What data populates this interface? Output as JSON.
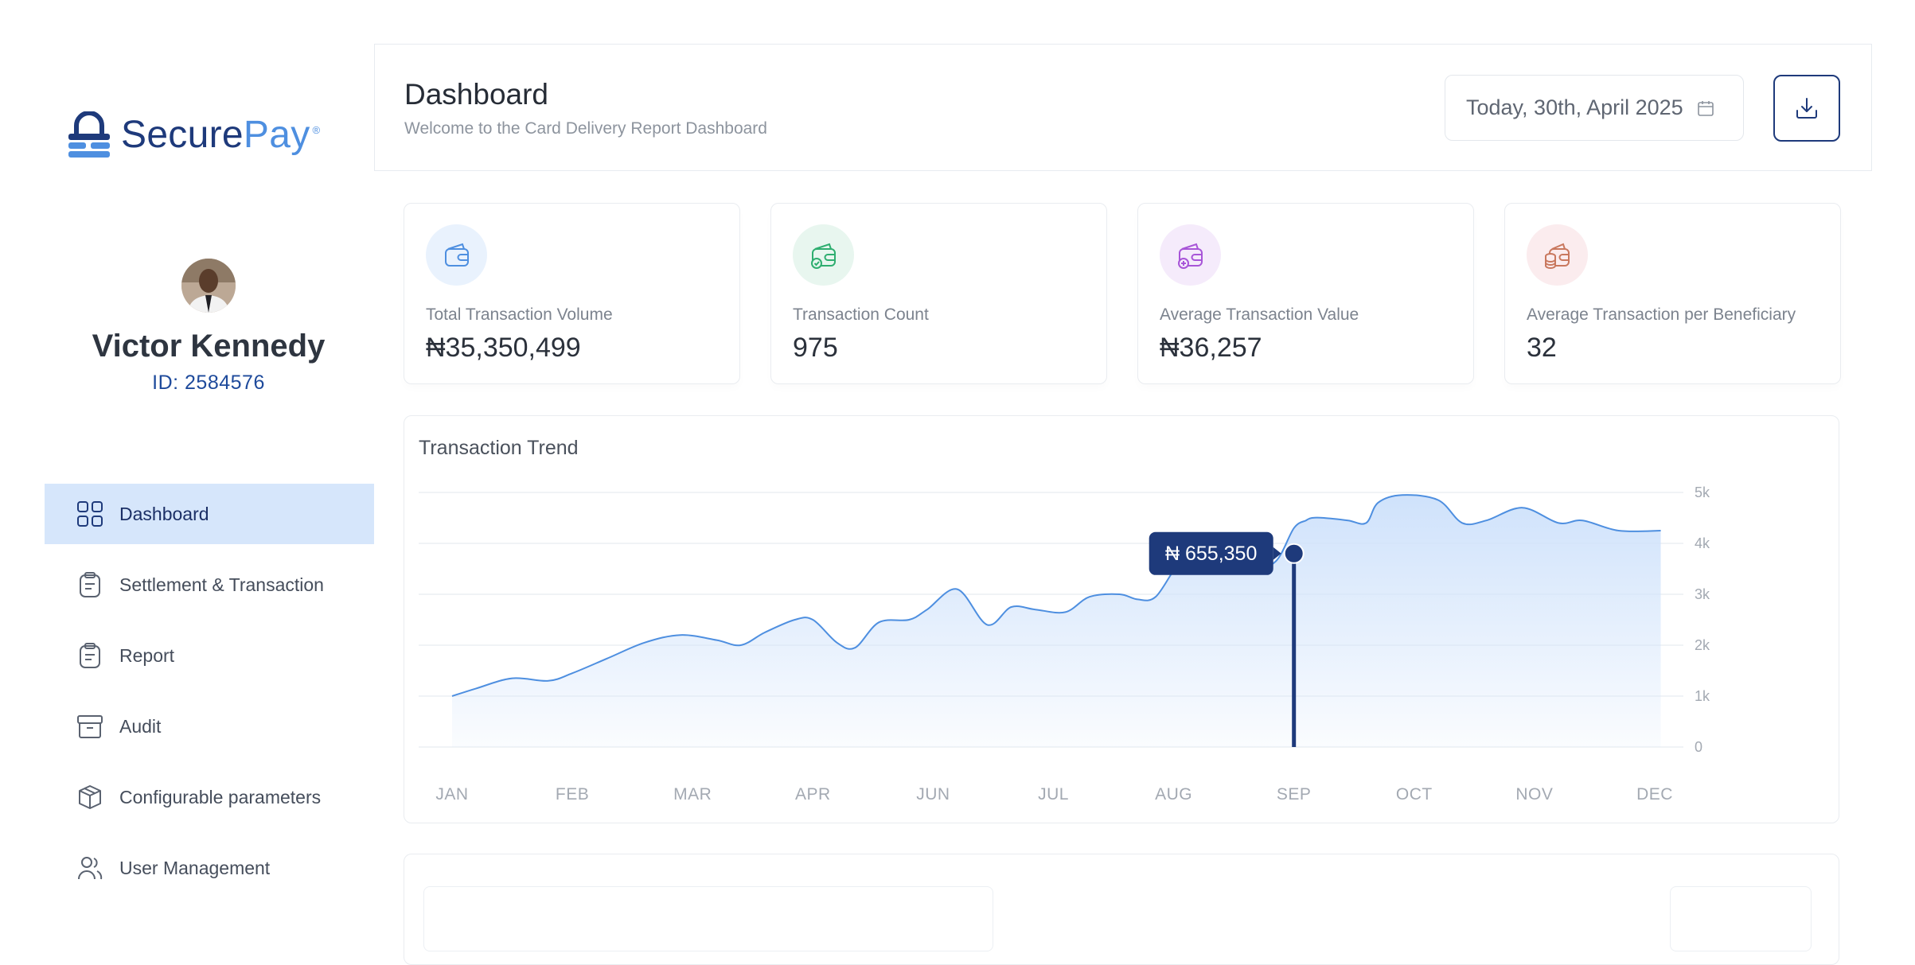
{
  "brand": {
    "name_part1": "Secure",
    "name_part2": "Pay",
    "reg_mark": "®"
  },
  "user": {
    "name": "Victor Kennedy",
    "id_text": "ID: 2584576"
  },
  "sidebar": {
    "items": [
      {
        "label": "Dashboard",
        "icon": "grid-icon",
        "active": true
      },
      {
        "label": "Settlement & Transaction",
        "icon": "clipboard-icon"
      },
      {
        "label": "Report",
        "icon": "clipboard-icon"
      },
      {
        "label": "Audit",
        "icon": "archive-box-icon"
      },
      {
        "label": "Configurable parameters",
        "icon": "cube-icon"
      },
      {
        "label": "User Management",
        "icon": "users-icon"
      }
    ]
  },
  "header": {
    "title": "Dashboard",
    "subtitle": "Welcome to the Card Delivery Report Dashboard",
    "date": "Today, 30th, April 2025",
    "date_icon": "calendar-icon",
    "download_icon": "download-icon"
  },
  "stats": [
    {
      "label": "Total Transaction Volume",
      "value": "₦35,350,499",
      "icon": "wallet-icon",
      "color": "#4e8fe0",
      "bg": "#e9f2fd"
    },
    {
      "label": "Transaction Count",
      "value": "975",
      "icon": "wallet-check-icon",
      "color": "#2fae70",
      "bg": "#e8f6ef"
    },
    {
      "label": "Average Transaction Value",
      "value": "₦36,257",
      "icon": "wallet-add-icon",
      "color": "#a855d8",
      "bg": "#f5ebfb"
    },
    {
      "label": "Average Transaction per Beneficiary",
      "value": "32",
      "icon": "wallet-coins-icon",
      "color": "#c9785e",
      "bg": "#fbecee"
    }
  ],
  "chart_data": {
    "type": "area",
    "title": "Transaction Trend",
    "categories": [
      "JAN",
      "FEB",
      "MAR",
      "APR",
      "JUN",
      "JUL",
      "AUG",
      "SEP",
      "OCT",
      "NOV",
      "DEC"
    ],
    "y_ticks": [
      "0",
      "1k",
      "2k",
      "3k",
      "4k",
      "5k"
    ],
    "ylim": [
      0,
      5000
    ],
    "grid": true,
    "line_color": "#4e8fe0",
    "series": [
      {
        "x": [
          0,
          0.2,
          0.5,
          0.8,
          1.0,
          1.3,
          1.6,
          1.9,
          2.2,
          2.4,
          2.6,
          2.85,
          3.0,
          3.2,
          3.35,
          3.55,
          3.8,
          3.95,
          4.2,
          4.45,
          4.65,
          4.85,
          5.1,
          5.3,
          5.55,
          5.7,
          5.85,
          6.05,
          6.25,
          6.45,
          6.65,
          6.85,
          7.0,
          7.1,
          7.15,
          7.25,
          7.45,
          7.6,
          7.7,
          7.9,
          8.2,
          8.4,
          8.6,
          8.9,
          9.2,
          9.4,
          9.7,
          10.05
        ],
        "values": [
          1000,
          1150,
          1350,
          1300,
          1450,
          1750,
          2050,
          2200,
          2100,
          2000,
          2250,
          2500,
          2500,
          2050,
          1950,
          2450,
          2500,
          2700,
          3100,
          2400,
          2750,
          2700,
          2650,
          2950,
          3000,
          2900,
          2950,
          3600,
          3700,
          3750,
          3500,
          3650,
          4300,
          4450,
          4500,
          4500,
          4450,
          4400,
          4800,
          4950,
          4850,
          4400,
          4450,
          4700,
          4400,
          4450,
          4250,
          4250
        ]
      }
    ],
    "tooltip": {
      "category": "SEP",
      "label": "₦ 655,350",
      "y_value": 3800
    }
  }
}
